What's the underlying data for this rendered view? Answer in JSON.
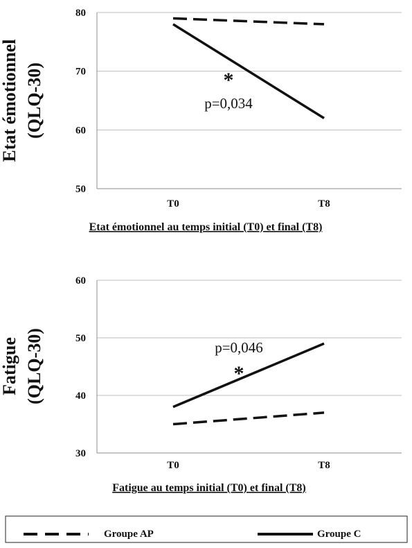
{
  "chart_data": [
    {
      "type": "line",
      "title": "",
      "xlabel": "Etat émotionnel au temps initial (T0) et final (T8)",
      "ylabel": "Etat émotionnel (QLQ-30)",
      "ylabel_lines": [
        "Etat émotionnel",
        "(QLQ-30)"
      ],
      "categories": [
        "T0",
        "T8"
      ],
      "ylim": [
        50,
        80
      ],
      "yticks": [
        50,
        60,
        70,
        80
      ],
      "grid": true,
      "series": [
        {
          "name": "Groupe AP",
          "values": [
            79,
            78
          ],
          "style": "dashed"
        },
        {
          "name": "Groupe C",
          "values": [
            78,
            62
          ],
          "style": "solid"
        }
      ],
      "annotation": {
        "star": "*",
        "text": "p=0,034"
      }
    },
    {
      "type": "line",
      "title": "",
      "xlabel": "Fatigue au temps initial (T0) et final (T8)",
      "ylabel": "Fatigue (QLQ-30)",
      "ylabel_lines": [
        "Fatigue",
        "(QLQ-30)"
      ],
      "categories": [
        "T0",
        "T8"
      ],
      "ylim": [
        30,
        60
      ],
      "yticks": [
        30,
        40,
        50,
        60
      ],
      "grid": true,
      "series": [
        {
          "name": "Groupe AP",
          "values": [
            35,
            37
          ],
          "style": "dashed"
        },
        {
          "name": "Groupe C",
          "values": [
            38,
            49
          ],
          "style": "solid"
        }
      ],
      "annotation": {
        "star": "*",
        "text": "p=0,046"
      }
    }
  ],
  "legend": {
    "placement": "bottom",
    "items": [
      {
        "label": "Groupe AP",
        "style": "dashed"
      },
      {
        "label": "Groupe C",
        "style": "solid"
      }
    ]
  },
  "colors": {
    "line": "#111111",
    "grid": "#bdbdbd",
    "axis": "#8c8c8c",
    "text": "#111111"
  }
}
